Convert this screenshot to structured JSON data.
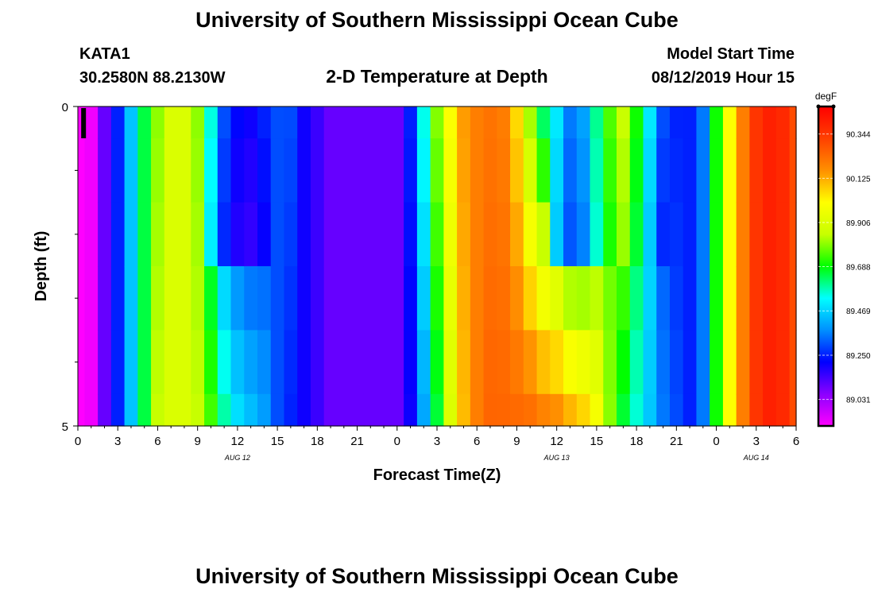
{
  "header": {
    "title_top": "University of Southern Mississippi Ocean Cube",
    "title_bottom": "University of Southern Mississippi Ocean Cube",
    "station_id": "KATA1",
    "station_coords": "30.2580N 88.2130W",
    "plot_title": "2-D Temperature at Depth",
    "model_start_label": "Model Start Time",
    "model_start_value": "08/12/2019 Hour 15"
  },
  "chart_data": {
    "type": "heatmap",
    "title": "2-D Temperature at Depth",
    "xlabel": "Forecast Time(Z)",
    "ylabel": "Depth (ft)",
    "x_range_hours": [
      0,
      54
    ],
    "y_range_ft": [
      0,
      5
    ],
    "x_tick_labels": [
      "0",
      "3",
      "6",
      "9",
      "12",
      "15",
      "18",
      "21",
      "0",
      "3",
      "6",
      "9",
      "12",
      "15",
      "18",
      "21",
      "0",
      "3",
      "6"
    ],
    "y_tick_labels": [
      "0",
      "5"
    ],
    "day_labels": [
      {
        "text": "AUG 12",
        "hour": 12
      },
      {
        "text": "AUG 13",
        "hour": 36
      },
      {
        "text": "AUG 14",
        "hour": 51
      }
    ],
    "colorbar": {
      "unit": "degF",
      "min": 88.9,
      "max": 90.48,
      "tick_labels": [
        "89.031",
        "89.250",
        "89.469",
        "89.688",
        "89.906",
        "90.125",
        "90.344"
      ],
      "tick_values": [
        89.031,
        89.25,
        89.469,
        89.688,
        89.906,
        90.125,
        90.344
      ],
      "colors": [
        "#ff00ff",
        "#8b00ff",
        "#0000ff",
        "#0090ff",
        "#00ffff",
        "#00ff00",
        "#c8ff00",
        "#ffff00",
        "#ff9000",
        "#ff4000",
        "#ff0000"
      ]
    },
    "depth_layers_ft": [
      0,
      0.5,
      1.5,
      2.5,
      3.5,
      4.5
    ],
    "time_hours": [
      0,
      1,
      2,
      3,
      4,
      5,
      6,
      7,
      8,
      9,
      10,
      11,
      12,
      13,
      14,
      15,
      16,
      17,
      18,
      19,
      20,
      21,
      22,
      23,
      24,
      25,
      26,
      27,
      28,
      29,
      30,
      31,
      32,
      33,
      34,
      35,
      36,
      37,
      38,
      39,
      40,
      41,
      42,
      43,
      44,
      45,
      46,
      47,
      48,
      49,
      50,
      51,
      52,
      53,
      54
    ],
    "surface_temps": [
      88.9,
      88.92,
      89.1,
      89.25,
      89.45,
      89.65,
      89.8,
      89.9,
      89.9,
      89.8,
      89.55,
      89.3,
      89.22,
      89.2,
      89.25,
      89.3,
      89.3,
      89.2,
      89.15,
      89.1,
      89.1,
      89.1,
      89.1,
      89.1,
      89.1,
      89.25,
      89.55,
      89.8,
      90.0,
      90.15,
      90.2,
      90.22,
      90.2,
      90.05,
      89.8,
      89.6,
      89.5,
      89.35,
      89.4,
      89.6,
      89.75,
      89.85,
      89.7,
      89.5,
      89.3,
      89.25,
      89.25,
      89.35,
      89.7,
      90.0,
      90.2,
      90.35,
      90.4,
      90.38,
      90.3
    ],
    "bottom_temps": [
      88.9,
      88.92,
      89.1,
      89.25,
      89.45,
      89.65,
      89.85,
      89.9,
      89.9,
      89.85,
      89.75,
      89.6,
      89.5,
      89.45,
      89.4,
      89.3,
      89.25,
      89.2,
      89.15,
      89.1,
      89.1,
      89.1,
      89.1,
      89.1,
      89.1,
      89.2,
      89.4,
      89.65,
      89.9,
      90.1,
      90.2,
      90.25,
      90.25,
      90.25,
      90.25,
      90.22,
      90.2,
      90.15,
      90.1,
      90.0,
      89.8,
      89.65,
      89.55,
      89.45,
      89.35,
      89.3,
      89.25,
      89.35,
      89.7,
      90.0,
      90.2,
      90.35,
      90.4,
      90.38,
      90.3
    ],
    "upper_cool_anomaly": {
      "hours": [
        10,
        11,
        12,
        13,
        14,
        36,
        37,
        38,
        39,
        40,
        41,
        42,
        43,
        44
      ],
      "note": "cooler water in upper layers around 10-14 Z Aug 12 and 12-15 Z Aug 13"
    }
  }
}
